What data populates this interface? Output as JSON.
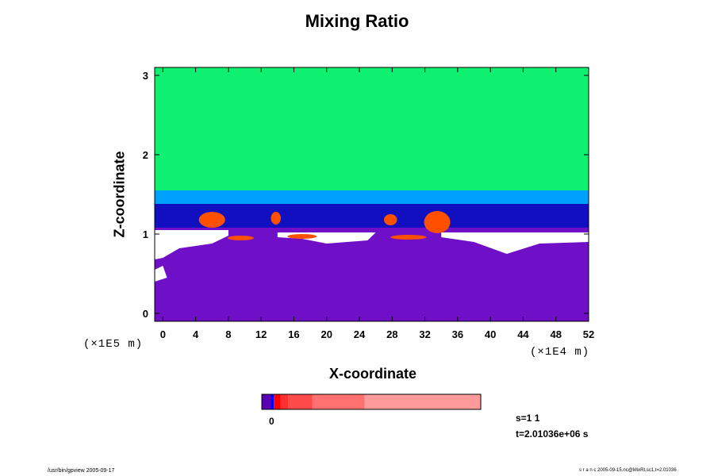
{
  "chart_data": {
    "type": "heatmap",
    "title": "Mixing Ratio",
    "xlabel": "X-coordinate",
    "ylabel": "Z-coordinate",
    "x_scale_note": "(×1E4 m)",
    "y_scale_note": "(×1E5 m)",
    "xlim": [
      -1,
      52
    ],
    "ylim": [
      -0.1,
      3.1
    ],
    "x_ticks": [
      0,
      4,
      8,
      12,
      16,
      20,
      24,
      28,
      32,
      36,
      40,
      44,
      48,
      52
    ],
    "y_ticks": [
      0,
      1,
      2,
      3
    ],
    "colorbar": {
      "tick_label": "0",
      "colors": [
        "#5a00b4",
        "#0000ff",
        "#ff0000",
        "#ff3030",
        "#ff4a4a",
        "#ff7070",
        "#ff9a9a"
      ]
    },
    "field_colors": {
      "lower": "#6f10c8",
      "missing": "#ffffff",
      "boundary": "#1010c0",
      "mid": "#00a0ff",
      "upper": "#10f070",
      "plume": "#ff5000"
    }
  },
  "annotations": {
    "step": "s=1 1",
    "time": "t=2.01036e+06 s"
  },
  "footer": {
    "left": "/usr/bin/gpview 2005-09-17",
    "right": "s r a n c 2005-09-15.nc@MixRt,sc1,t=2.01036"
  }
}
